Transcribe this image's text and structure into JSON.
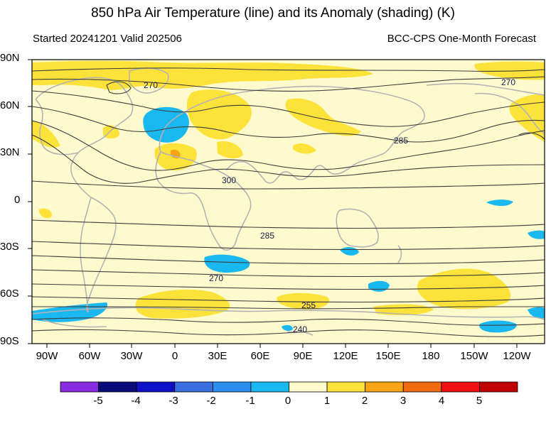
{
  "title": "850 hPa Air Temperature (line) and its Anomaly (shading) (K)",
  "subtitle_left": "Started 20241201  Valid 202506",
  "subtitle_right": "BCC-CPS One-Month Forecast",
  "lat_labels": [
    "90N",
    "60N",
    "30N",
    "0",
    "30S",
    "60S",
    "90S"
  ],
  "lon_labels": [
    "90W",
    "60W",
    "30W",
    "0",
    "30E",
    "60E",
    "90E",
    "120E",
    "150E",
    "180",
    "150W",
    "120W"
  ],
  "contour_labels": [
    "270",
    "270",
    "285",
    "300",
    "285",
    "270",
    "255",
    "240"
  ],
  "colorbar": {
    "labels": [
      "-5",
      "-4",
      "-3",
      "-2",
      "-1",
      "0",
      "1",
      "2",
      "3",
      "4",
      "5"
    ],
    "colors": [
      "#8a2be2",
      "#0a0a7a",
      "#1010c8",
      "#3a6ee0",
      "#2a8fef",
      "#1ab8f0",
      "#fdfacd",
      "#fde23a",
      "#f7a516",
      "#f06a10",
      "#f01010",
      "#c00000"
    ]
  },
  "colors": {
    "background_anomaly": "#fdfacd",
    "positive": "#fde23a",
    "negative": "#1ab8f0",
    "coast": "#b3b3b3",
    "contour": "#3c3c3c"
  }
}
